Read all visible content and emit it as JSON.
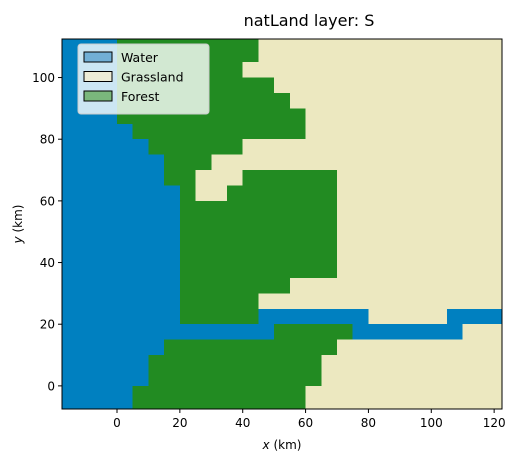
{
  "chart_data": {
    "type": "heatmap",
    "title": "natLand layer: S",
    "xlabel_var": "x",
    "xlabel_unit": " (km)",
    "ylabel_var": "y",
    "ylabel_unit": " (km)",
    "xlim": [
      -17.5,
      122.5
    ],
    "ylim": [
      -7.5,
      112.5
    ],
    "xticks": [
      0,
      20,
      40,
      60,
      80,
      100,
      120
    ],
    "yticks": [
      0,
      20,
      40,
      60,
      80,
      100
    ],
    "cell_size": 5,
    "categories": [
      {
        "key": "W",
        "name": "Water",
        "color": "#0080c0"
      },
      {
        "key": "G",
        "name": "Grassland",
        "color": "#ece8c0"
      },
      {
        "key": "F",
        "name": "Forest",
        "color": "#228b22"
      }
    ],
    "legend": {
      "placement": "upper-left",
      "entries": [
        {
          "label": "Water",
          "swatch": "#72afd6"
        },
        {
          "label": "Grassland",
          "swatch": "#edecd6"
        },
        {
          "label": "Forest",
          "swatch": "#7ab87c"
        }
      ]
    },
    "region_rows": [
      {
        "y": [
          105,
          112.5
        ],
        "segments": [
          {
            "x": [
              -17.5,
              0
            ],
            "c": "W"
          },
          {
            "x": [
              0,
              45
            ],
            "c": "F"
          },
          {
            "x": [
              45,
              122.5
            ],
            "c": "G"
          }
        ]
      },
      {
        "y": [
          100,
          105
        ],
        "segments": [
          {
            "x": [
              -17.5,
              0
            ],
            "c": "W"
          },
          {
            "x": [
              0,
              40
            ],
            "c": "F"
          },
          {
            "x": [
              40,
              122.5
            ],
            "c": "G"
          }
        ]
      },
      {
        "y": [
          95,
          100
        ],
        "segments": [
          {
            "x": [
              -17.5,
              0
            ],
            "c": "W"
          },
          {
            "x": [
              0,
              50
            ],
            "c": "F"
          },
          {
            "x": [
              50,
              122.5
            ],
            "c": "G"
          }
        ]
      },
      {
        "y": [
          90,
          95
        ],
        "segments": [
          {
            "x": [
              -17.5,
              0
            ],
            "c": "W"
          },
          {
            "x": [
              0,
              55
            ],
            "c": "F"
          },
          {
            "x": [
              55,
              122.5
            ],
            "c": "G"
          }
        ]
      },
      {
        "y": [
          85,
          90
        ],
        "segments": [
          {
            "x": [
              -17.5,
              0
            ],
            "c": "W"
          },
          {
            "x": [
              0,
              60
            ],
            "c": "F"
          },
          {
            "x": [
              60,
              122.5
            ],
            "c": "G"
          }
        ]
      },
      {
        "y": [
          80,
          85
        ],
        "segments": [
          {
            "x": [
              -17.5,
              5
            ],
            "c": "W"
          },
          {
            "x": [
              5,
              60
            ],
            "c": "F"
          },
          {
            "x": [
              60,
              122.5
            ],
            "c": "G"
          }
        ]
      },
      {
        "y": [
          75,
          80
        ],
        "segments": [
          {
            "x": [
              -17.5,
              10
            ],
            "c": "W"
          },
          {
            "x": [
              10,
              40
            ],
            "c": "F"
          },
          {
            "x": [
              40,
              122.5
            ],
            "c": "G"
          }
        ]
      },
      {
        "y": [
          70,
          75
        ],
        "segments": [
          {
            "x": [
              -17.5,
              15
            ],
            "c": "W"
          },
          {
            "x": [
              15,
              30
            ],
            "c": "F"
          },
          {
            "x": [
              30,
              122.5
            ],
            "c": "G"
          }
        ]
      },
      {
        "y": [
          65,
          70
        ],
        "segments": [
          {
            "x": [
              -17.5,
              15
            ],
            "c": "W"
          },
          {
            "x": [
              15,
              25
            ],
            "c": "F"
          },
          {
            "x": [
              25,
              40
            ],
            "c": "G"
          },
          {
            "x": [
              40,
              70
            ],
            "c": "F"
          },
          {
            "x": [
              70,
              122.5
            ],
            "c": "G"
          }
        ]
      },
      {
        "y": [
          60,
          65
        ],
        "segments": [
          {
            "x": [
              -17.5,
              20
            ],
            "c": "W"
          },
          {
            "x": [
              20,
              25
            ],
            "c": "F"
          },
          {
            "x": [
              25,
              35
            ],
            "c": "G"
          },
          {
            "x": [
              35,
              70
            ],
            "c": "F"
          },
          {
            "x": [
              70,
              122.5
            ],
            "c": "G"
          }
        ]
      },
      {
        "y": [
          35,
          60
        ],
        "segments": [
          {
            "x": [
              -17.5,
              20
            ],
            "c": "W"
          },
          {
            "x": [
              20,
              70
            ],
            "c": "F"
          },
          {
            "x": [
              70,
              122.5
            ],
            "c": "G"
          }
        ]
      },
      {
        "y": [
          30,
          35
        ],
        "segments": [
          {
            "x": [
              -17.5,
              20
            ],
            "c": "W"
          },
          {
            "x": [
              20,
              55
            ],
            "c": "F"
          },
          {
            "x": [
              55,
              122.5
            ],
            "c": "G"
          }
        ]
      },
      {
        "y": [
          25,
          30
        ],
        "segments": [
          {
            "x": [
              -17.5,
              20
            ],
            "c": "W"
          },
          {
            "x": [
              20,
              45
            ],
            "c": "F"
          },
          {
            "x": [
              45,
              122.5
            ],
            "c": "G"
          }
        ]
      },
      {
        "y": [
          20,
          25
        ],
        "segments": [
          {
            "x": [
              -17.5,
              20
            ],
            "c": "W"
          },
          {
            "x": [
              20,
              45
            ],
            "c": "F"
          },
          {
            "x": [
              45,
              80
            ],
            "c": "W"
          },
          {
            "x": [
              80,
              105
            ],
            "c": "G"
          },
          {
            "x": [
              105,
              122.5
            ],
            "c": "W"
          }
        ]
      },
      {
        "y": [
          15,
          20
        ],
        "segments": [
          {
            "x": [
              -17.5,
              50
            ],
            "c": "W"
          },
          {
            "x": [
              50,
              75
            ],
            "c": "F"
          },
          {
            "x": [
              75,
              110
            ],
            "c": "W"
          },
          {
            "x": [
              110,
              122.5
            ],
            "c": "G"
          }
        ]
      },
      {
        "y": [
          10,
          15
        ],
        "segments": [
          {
            "x": [
              -17.5,
              15
            ],
            "c": "W"
          },
          {
            "x": [
              15,
              70
            ],
            "c": "F"
          },
          {
            "x": [
              70,
              122.5
            ],
            "c": "G"
          }
        ]
      },
      {
        "y": [
          5,
          10
        ],
        "segments": [
          {
            "x": [
              -17.5,
              10
            ],
            "c": "W"
          },
          {
            "x": [
              10,
              65
            ],
            "c": "F"
          },
          {
            "x": [
              65,
              122.5
            ],
            "c": "G"
          }
        ]
      },
      {
        "y": [
          0,
          5
        ],
        "segments": [
          {
            "x": [
              -17.5,
              10
            ],
            "c": "W"
          },
          {
            "x": [
              10,
              65
            ],
            "c": "F"
          },
          {
            "x": [
              65,
              122.5
            ],
            "c": "G"
          }
        ]
      },
      {
        "y": [
          -5,
          0
        ],
        "segments": [
          {
            "x": [
              -17.5,
              5
            ],
            "c": "W"
          },
          {
            "x": [
              5,
              60
            ],
            "c": "F"
          },
          {
            "x": [
              60,
              122.5
            ],
            "c": "G"
          }
        ]
      },
      {
        "y": [
          -7.5,
          -5
        ],
        "segments": [
          {
            "x": [
              -17.5,
              5
            ],
            "c": "W"
          },
          {
            "x": [
              5,
              60
            ],
            "c": "F"
          },
          {
            "x": [
              60,
              122.5
            ],
            "c": "G"
          }
        ]
      }
    ]
  }
}
